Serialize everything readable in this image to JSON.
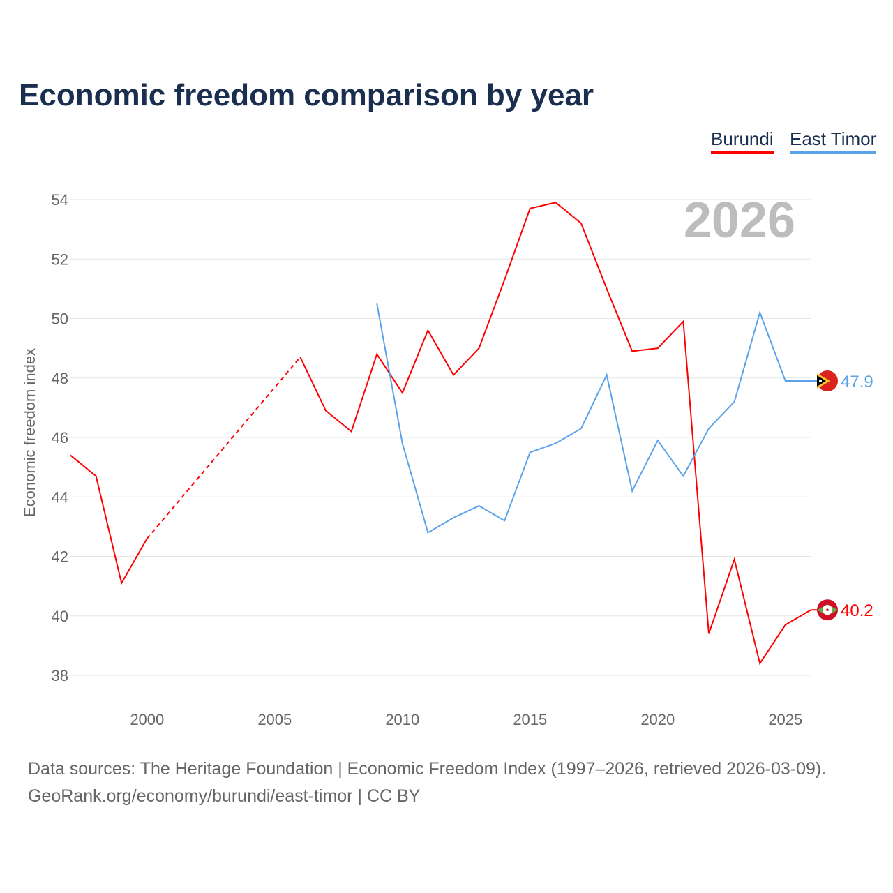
{
  "title": "Economic freedom comparison by year",
  "year_watermark": "2026",
  "sources": [
    "Data sources: The Heritage Foundation | Economic Freedom Index (1997–2026, retrieved 2026-03-09).",
    "GeoRank.org/economy/burundi/east-timor | CC BY"
  ],
  "chart_data": {
    "type": "line",
    "title": "Economic freedom comparison by year",
    "xlabel": "",
    "ylabel": "Economic freedom index",
    "xlim": [
      1997,
      2026
    ],
    "ylim": [
      37.2,
      54.6
    ],
    "xticks": [
      2000,
      2005,
      2010,
      2015,
      2020,
      2025
    ],
    "yticks": [
      38,
      40,
      42,
      44,
      46,
      48,
      50,
      52,
      54
    ],
    "grid": true,
    "legend_placement": "top-right",
    "series": [
      {
        "name": "Burundi",
        "color": "#ff0000",
        "end_label": "40.2",
        "x": [
          1997,
          1998,
          1999,
          2000,
          2006,
          2007,
          2008,
          2009,
          2010,
          2011,
          2012,
          2013,
          2014,
          2015,
          2016,
          2017,
          2018,
          2019,
          2020,
          2021,
          2022,
          2023,
          2024,
          2025,
          2026
        ],
        "y": [
          45.4,
          44.7,
          41.1,
          42.6,
          48.7,
          46.9,
          46.2,
          48.8,
          47.5,
          49.6,
          48.1,
          49.0,
          51.3,
          53.7,
          53.9,
          53.2,
          51.0,
          48.9,
          49.0,
          49.9,
          39.4,
          41.9,
          38.4,
          39.7,
          40.2
        ]
      },
      {
        "name": "East Timor",
        "color": "#5ba3e8",
        "end_label": "47.9",
        "x": [
          2009,
          2010,
          2011,
          2012,
          2013,
          2014,
          2015,
          2016,
          2017,
          2018,
          2019,
          2020,
          2021,
          2022,
          2023,
          2024,
          2025,
          2026
        ],
        "y": [
          50.5,
          45.8,
          42.8,
          43.3,
          43.7,
          43.2,
          45.5,
          45.8,
          46.3,
          48.1,
          44.2,
          45.9,
          44.7,
          46.3,
          47.2,
          50.2,
          47.9,
          47.9
        ]
      }
    ]
  }
}
